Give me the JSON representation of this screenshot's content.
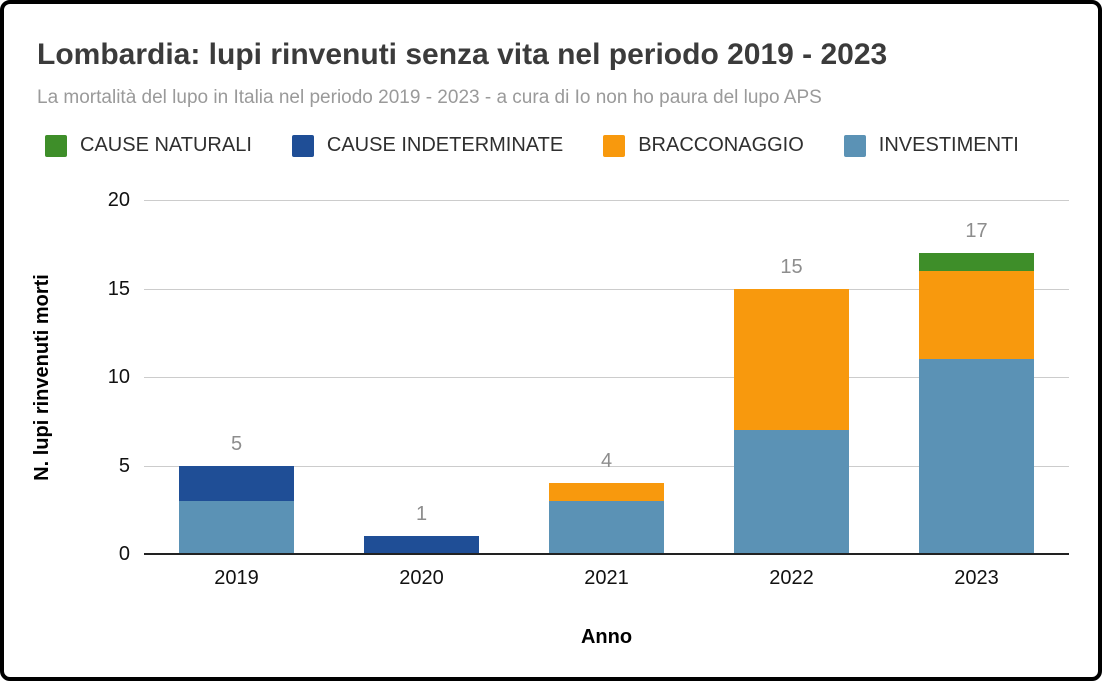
{
  "header": {
    "title": "Lombardia: lupi rinvenuti senza vita nel periodo 2019 - 2023",
    "subtitle": "La mortalità del lupo in Italia nel periodo 2019 - 2023 - a cura di Io non ho paura del lupo APS"
  },
  "colors": {
    "cause_naturali": "#3e8e29",
    "cause_indeterminate": "#1f4e96",
    "bracconaggio": "#f8990d",
    "investimenti": "#5b92b5",
    "gridline": "#cccccc",
    "axis_line": "#222222",
    "value_label": "#8d8d8d"
  },
  "legend": {
    "items": [
      {
        "label": "CAUSE NATURALI",
        "color_key": "cause_naturali"
      },
      {
        "label": "CAUSE INDETERMINATE",
        "color_key": "cause_indeterminate"
      },
      {
        "label": "BRACCONAGGIO",
        "color_key": "bracconaggio"
      },
      {
        "label": "INVESTIMENTI",
        "color_key": "investimenti"
      }
    ]
  },
  "chart_data": {
    "type": "bar",
    "stacked": true,
    "title": "Lombardia: lupi rinvenuti senza vita nel periodo 2019 - 2023",
    "xlabel": "Anno",
    "ylabel": "N. lupi rinvenuti morti",
    "categories": [
      "2019",
      "2020",
      "2021",
      "2022",
      "2023"
    ],
    "series_bottom_to_top": [
      {
        "name": "INVESTIMENTI",
        "color_key": "investimenti",
        "values": [
          3,
          0,
          3,
          7,
          11
        ]
      },
      {
        "name": "BRACCONAGGIO",
        "color_key": "bracconaggio",
        "values": [
          0,
          0,
          1,
          8,
          5
        ]
      },
      {
        "name": "CAUSE INDETERMINATE",
        "color_key": "cause_indeterminate",
        "values": [
          2,
          1,
          0,
          0,
          0
        ]
      },
      {
        "name": "CAUSE NATURALI",
        "color_key": "cause_naturali",
        "values": [
          0,
          0,
          0,
          0,
          1
        ]
      }
    ],
    "totals": [
      5,
      1,
      4,
      15,
      17
    ],
    "ylim": [
      0,
      20
    ],
    "yticks": [
      0,
      5,
      10,
      15,
      20
    ],
    "grid": true,
    "legend_position": "top"
  }
}
